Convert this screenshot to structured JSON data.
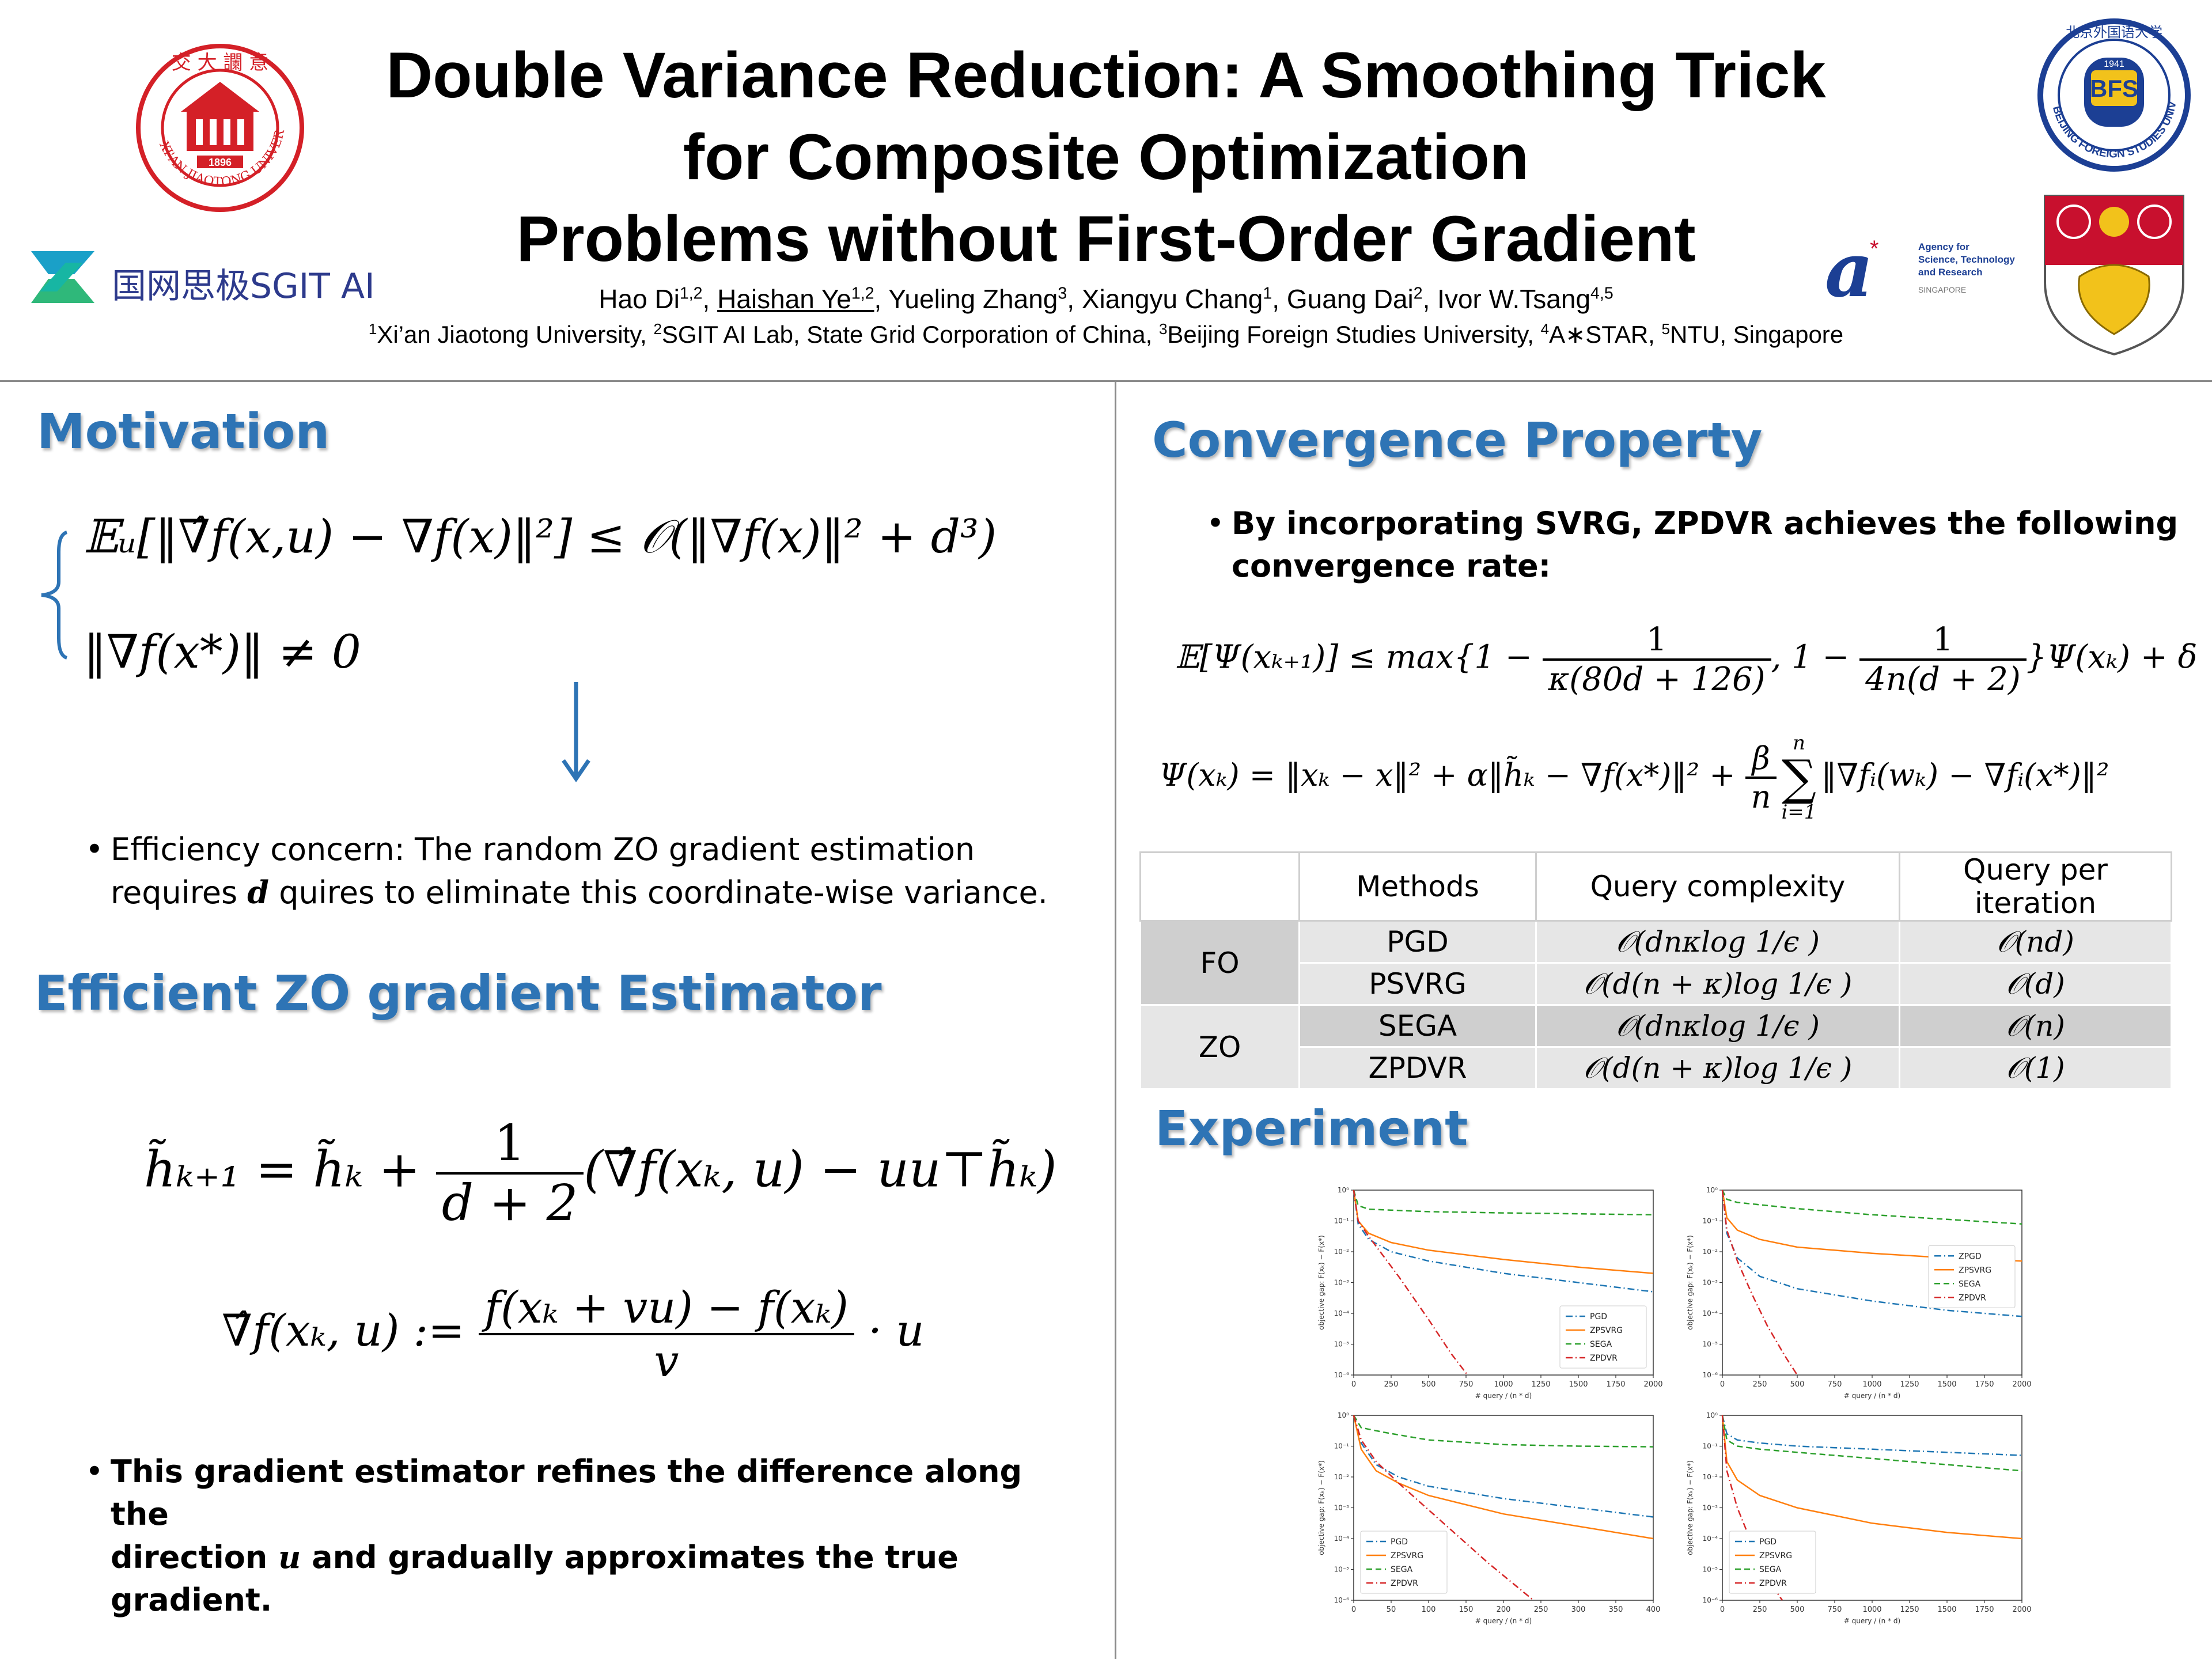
{
  "header": {
    "title_line1": "Double Variance Reduction: A Smoothing Trick",
    "title_line2": "for Composite Optimization",
    "title_line3": "Problems without First-Order Gradient",
    "authors": [
      {
        "name": "Hao Di",
        "aff": "1,2",
        "sep": ", "
      },
      {
        "name": "Haishan Ye",
        "aff": "1,2",
        "sep": ", "
      },
      {
        "name": "Yueling Zhang",
        "aff": "3",
        "sep": ", "
      },
      {
        "name": "Xiangyu Chang",
        "aff": "1",
        "sep": ", "
      },
      {
        "name": "Guang Dai",
        "aff": "2",
        "sep": ", "
      },
      {
        "name": "Ivor W.Tsang",
        "aff": "4,5",
        "sep": ""
      }
    ],
    "affiliations": [
      {
        "num": "1",
        "text": "Xi’an Jiaotong University, "
      },
      {
        "num": "2",
        "text": "SGIT AI Lab, State Grid Corporation of China, "
      },
      {
        "num": "3",
        "text": "Beijing Foreign Studies University, "
      },
      {
        "num": "4",
        "text": "A∗STAR, "
      },
      {
        "num": "5",
        "text": "NTU, Singapore"
      }
    ],
    "logos": {
      "xjtu_year": "1896",
      "xjtu_ring": "XI'AN JIAOTONG UNIVERSITY",
      "sgit_text": "国网思极SGIT AI",
      "bfsu_letters": "BFS",
      "bfsu_year": "1941",
      "bfsu_ring": "BEIJING FOREIGN STUDIES UNIVERSITY",
      "astar_line1": "Agency for",
      "astar_line2": "Science, Technology",
      "astar_line3": "and Research",
      "astar_line4": "SINGAPORE"
    }
  },
  "motivation": {
    "heading": "Motivation",
    "eq1": "𝔼ᵤ[‖∇̂f(x,u) − ∇f(x)‖²] ≤ 𝒪(‖∇f(x)‖² + d³)",
    "eq2": "‖∇f(x*)‖ ≠ 0",
    "bullet_line1": "Efficiency concern: The random ZO gradient estimation",
    "bullet_line2_pre": "requires ",
    "bullet_line2_var": "d",
    "bullet_line2_post": " quires to eliminate this coordinate-wise variance."
  },
  "estimator": {
    "heading": "Efficient ZO gradient Estimator",
    "eq1_lhs": "h̃ₖ₊₁ = h̃ₖ + ",
    "eq1_num": "1",
    "eq1_den": "d + 2",
    "eq1_rhs": "(∇̂f(xₖ, u) − uu⊤h̃ₖ)",
    "eq2_lhs": "∇̂f(xₖ, u) := ",
    "eq2_num": "f(xₖ + vu) − f(xₖ)",
    "eq2_den": "v",
    "eq2_rhs": " · u",
    "bullet_line1": "This gradient estimator refines the difference along the",
    "bullet_line2_pre": "direction ",
    "bullet_line2_var": "u",
    "bullet_line2_post": " and gradually approximates the true gradient."
  },
  "convergence": {
    "heading": "Convergence Property",
    "bullet_line1": "By incorporating SVRG, ZPDVR achieves the following",
    "bullet_line2": "convergence rate:",
    "eq1_lhs": "𝔼[Ψ(xₖ₊₁)] ≤ max{1 − ",
    "eq1_f1_num": "1",
    "eq1_f1_den": "κ(80d + 126)",
    "eq1_mid": ", 1 − ",
    "eq1_f2_num": "1",
    "eq1_f2_den": "4n(d + 2)",
    "eq1_rhs": "}Ψ(xₖ) + δ",
    "eq2_lhs": "Ψ(xₖ) = ‖xₖ − x‖² + α‖h̃ₖ − ∇f(x*)‖² + ",
    "eq2_f_num": "β",
    "eq2_f_den": "n",
    "eq2_sum_top": "n",
    "eq2_sum": "∑",
    "eq2_sum_bot": "i=1",
    "eq2_rhs": "‖∇fᵢ(wₖ) − ∇fᵢ(x*)‖²"
  },
  "table": {
    "headers": [
      "Methods",
      "Query complexity",
      "Query per iteration"
    ],
    "groups": [
      {
        "name": "FO",
        "rows": [
          {
            "method": "PGD",
            "complexity": "𝒪(dnκlog 1/ϵ )",
            "per_iter": "𝒪(nd)"
          },
          {
            "method": "PSVRG",
            "complexity": "𝒪(d(n + κ)log 1/ϵ )",
            "per_iter": "𝒪(d)"
          }
        ]
      },
      {
        "name": "ZO",
        "rows": [
          {
            "method": "SEGA",
            "complexity": "𝒪(dnκlog 1/ϵ )",
            "per_iter": "𝒪(n)"
          },
          {
            "method": "ZPDVR",
            "complexity": "𝒪(d(n + κ)log 1/ϵ )",
            "per_iter": "𝒪(1)"
          }
        ]
      }
    ]
  },
  "experiment": {
    "heading": "Experiment",
    "ylabel": "objective gap: F(xₖ) − F(x*)",
    "xlabel": "# query / (n * d)"
  },
  "chart_data": [
    {
      "type": "line",
      "xlabel": "# query / (n * d)",
      "ylabel": "objective gap: F(xₖ) − F(x*)",
      "x_ticks": [
        0,
        250,
        500,
        750,
        1000,
        1250,
        1500,
        1750,
        2000
      ],
      "y_ticks": [
        "10⁰",
        "10⁻¹",
        "10⁻²",
        "10⁻³",
        "10⁻⁴",
        "10⁻⁵",
        "10⁻⁶"
      ],
      "xlim": [
        0,
        2000
      ],
      "ylim_log10": [
        -6,
        0
      ],
      "legend": "lower-right",
      "series": [
        {
          "name": "PGD",
          "color": "#1f77b4",
          "dash": "dashdot",
          "x": [
            0,
            30,
            100,
            250,
            500,
            1000,
            1500,
            2000
          ],
          "log10_y": [
            0,
            -1.1,
            -1.6,
            -2.0,
            -2.3,
            -2.7,
            -3.0,
            -3.3
          ]
        },
        {
          "name": "ZPSVRG",
          "color": "#ff7f0e",
          "dash": "solid",
          "x": [
            0,
            30,
            100,
            250,
            500,
            1000,
            1500,
            2000
          ],
          "log10_y": [
            0,
            -1.0,
            -1.4,
            -1.7,
            -1.95,
            -2.25,
            -2.5,
            -2.7
          ]
        },
        {
          "name": "SEGA",
          "color": "#2ca02c",
          "dash": "dashed",
          "x": [
            0,
            30,
            100,
            500,
            1000,
            1500,
            2000
          ],
          "log10_y": [
            0,
            -0.5,
            -0.62,
            -0.7,
            -0.74,
            -0.77,
            -0.8
          ]
        },
        {
          "name": "ZPDVR",
          "color": "#d62728",
          "dash": "dashdot",
          "x": [
            0,
            30,
            100,
            300,
            500,
            650,
            760
          ],
          "log10_y": [
            0,
            -1.0,
            -1.5,
            -2.8,
            -4.2,
            -5.3,
            -6.0
          ]
        }
      ]
    },
    {
      "type": "line",
      "xlabel": "# query / (n * d)",
      "ylabel": "objective gap: F(xₖ) − F(x*)",
      "x_ticks": [
        0,
        250,
        500,
        750,
        1000,
        1250,
        1500,
        1750,
        2000
      ],
      "y_ticks": [
        "10⁰",
        "10⁻¹",
        "10⁻²",
        "10⁻³",
        "10⁻⁴",
        "10⁻⁵",
        "10⁻⁶"
      ],
      "xlim": [
        0,
        2000
      ],
      "ylim_log10": [
        -6,
        0
      ],
      "legend": "center-right",
      "series": [
        {
          "name": "ZPGD",
          "color": "#1f77b4",
          "dash": "dashdot",
          "x": [
            0,
            30,
            100,
            250,
            500,
            1000,
            1500,
            2000
          ],
          "log10_y": [
            0,
            -1.4,
            -2.2,
            -2.8,
            -3.2,
            -3.6,
            -3.9,
            -4.1
          ]
        },
        {
          "name": "ZPSVRG",
          "color": "#ff7f0e",
          "dash": "solid",
          "x": [
            0,
            30,
            100,
            250,
            500,
            1000,
            1500,
            2000
          ],
          "log10_y": [
            0,
            -0.9,
            -1.3,
            -1.6,
            -1.85,
            -2.05,
            -2.2,
            -2.3
          ]
        },
        {
          "name": "SEGA",
          "color": "#2ca02c",
          "dash": "dashed",
          "x": [
            0,
            30,
            100,
            500,
            1000,
            1500,
            2000
          ],
          "log10_y": [
            0,
            -0.3,
            -0.4,
            -0.6,
            -0.8,
            -0.95,
            -1.1
          ]
        },
        {
          "name": "ZPDVR",
          "color": "#d62728",
          "dash": "dashdot",
          "x": [
            0,
            30,
            100,
            200,
            300,
            420,
            500
          ],
          "log10_y": [
            0,
            -1.3,
            -2.3,
            -3.4,
            -4.4,
            -5.4,
            -6.0
          ]
        }
      ]
    },
    {
      "type": "line",
      "xlabel": "# query / (n * d)",
      "ylabel": "objective gap: F(xₖ) − F(x*)",
      "x_ticks": [
        0,
        50,
        100,
        150,
        200,
        250,
        300,
        350,
        400
      ],
      "y_ticks": [
        "10⁰",
        "10⁻¹",
        "10⁻²",
        "10⁻³",
        "10⁻⁴",
        "10⁻⁵",
        "10⁻⁶"
      ],
      "xlim": [
        0,
        400
      ],
      "ylim_log10": [
        -6,
        0
      ],
      "legend": "lower-left",
      "series": [
        {
          "name": "PGD",
          "color": "#1f77b4",
          "dash": "dashdot",
          "x": [
            0,
            10,
            30,
            60,
            100,
            200,
            300,
            400
          ],
          "log10_y": [
            0,
            -0.9,
            -1.6,
            -2.0,
            -2.3,
            -2.7,
            -3.0,
            -3.3
          ]
        },
        {
          "name": "ZPSVRG",
          "color": "#ff7f0e",
          "dash": "solid",
          "x": [
            0,
            10,
            30,
            60,
            100,
            200,
            300,
            400
          ],
          "log10_y": [
            0,
            -1.1,
            -1.8,
            -2.2,
            -2.6,
            -3.2,
            -3.6,
            -4.0
          ]
        },
        {
          "name": "SEGA",
          "color": "#2ca02c",
          "dash": "dashed",
          "x": [
            0,
            10,
            40,
            100,
            200,
            300,
            400
          ],
          "log10_y": [
            0,
            -0.4,
            -0.55,
            -0.8,
            -0.95,
            -1.0,
            -1.02
          ]
        },
        {
          "name": "ZPDVR",
          "color": "#d62728",
          "dash": "dashdot",
          "x": [
            0,
            10,
            30,
            60,
            120,
            180,
            240
          ],
          "log10_y": [
            0,
            -0.8,
            -1.5,
            -2.2,
            -3.5,
            -4.8,
            -6.0
          ]
        }
      ]
    },
    {
      "type": "line",
      "xlabel": "# query / (n * d)",
      "ylabel": "objective gap: F(xₖ) − F(x*)",
      "x_ticks": [
        0,
        250,
        500,
        750,
        1000,
        1250,
        1500,
        1750,
        2000
      ],
      "y_ticks": [
        "10⁰",
        "10⁻¹",
        "10⁻²",
        "10⁻³",
        "10⁻⁴",
        "10⁻⁵",
        "10⁻⁶"
      ],
      "xlim": [
        0,
        2000
      ],
      "ylim_log10": [
        -6,
        0
      ],
      "legend": "lower-left",
      "series": [
        {
          "name": "PGD",
          "color": "#1f77b4",
          "dash": "dashdot",
          "x": [
            0,
            30,
            100,
            250,
            500,
            1000,
            1500,
            2000
          ],
          "log10_y": [
            0,
            -0.6,
            -0.8,
            -0.9,
            -1.0,
            -1.1,
            -1.2,
            -1.3
          ]
        },
        {
          "name": "ZPSVRG",
          "color": "#ff7f0e",
          "dash": "solid",
          "x": [
            0,
            30,
            100,
            250,
            500,
            1000,
            1500,
            2000
          ],
          "log10_y": [
            0,
            -1.5,
            -2.1,
            -2.6,
            -3.0,
            -3.5,
            -3.8,
            -4.0
          ]
        },
        {
          "name": "SEGA",
          "color": "#2ca02c",
          "dash": "dashed",
          "x": [
            0,
            30,
            100,
            250,
            500,
            1000,
            1500,
            2000
          ],
          "log10_y": [
            0,
            -0.8,
            -1.0,
            -1.1,
            -1.2,
            -1.4,
            -1.6,
            -1.8
          ]
        },
        {
          "name": "ZPDVR",
          "color": "#d62728",
          "dash": "dashdot",
          "x": [
            0,
            30,
            100,
            200,
            300,
            400
          ],
          "log10_y": [
            0,
            -1.8,
            -3.0,
            -4.2,
            -5.3,
            -6.0
          ]
        }
      ]
    }
  ]
}
